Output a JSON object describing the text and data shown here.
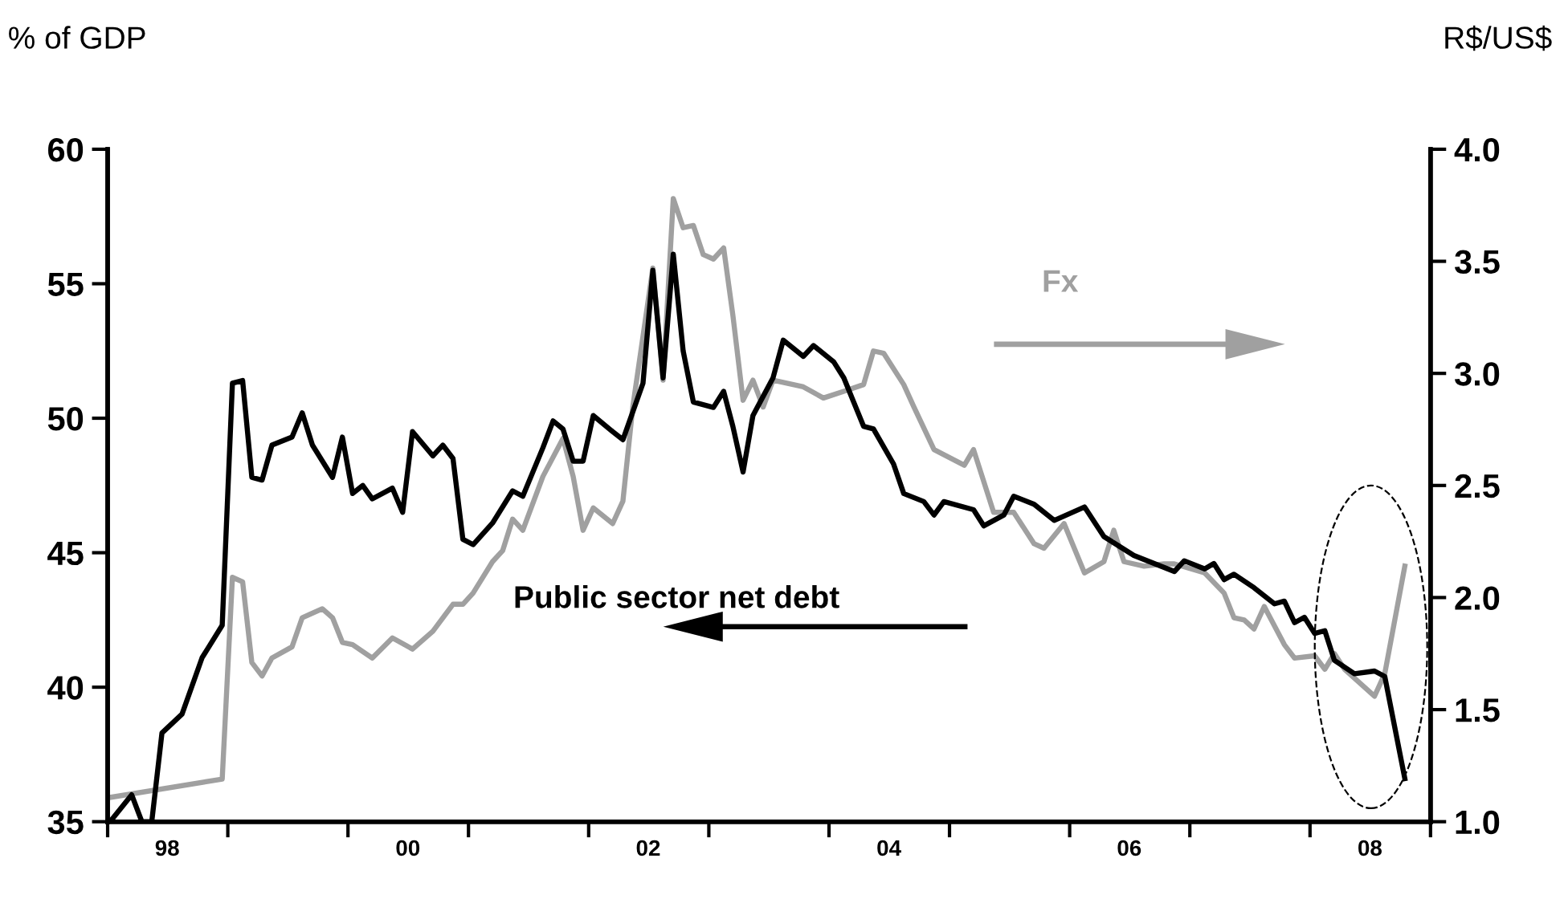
{
  "chart_data": {
    "type": "line",
    "ylabel": "% of GDP",
    "y2label": "R$/US$",
    "xlim": [
      "1998-01-01",
      "2009-01-01"
    ],
    "ylim": [
      35,
      60
    ],
    "yticks": [
      35,
      40,
      45,
      50,
      55,
      60
    ],
    "y2lim": [
      1.0,
      4.0
    ],
    "y2ticks": [
      {
        "value": 1.0,
        "label": "1.0"
      },
      {
        "value": 1.5,
        "label": "1.5"
      },
      {
        "value": 2.0,
        "label": "2.0"
      },
      {
        "value": 2.5,
        "label": "2.5"
      },
      {
        "value": 3.0,
        "label": "3.0"
      },
      {
        "value": 3.5,
        "label": "3.5"
      },
      {
        "value": 4.0,
        "label": "4.0"
      }
    ],
    "xticks": [
      {
        "value": "1998-01-01",
        "label": null
      },
      {
        "value": "1999-01-01",
        "label": null
      },
      {
        "value": "2000-01-01",
        "label": null
      },
      {
        "value": "2001-01-01",
        "label": null
      },
      {
        "value": "2002-01-01",
        "label": null
      },
      {
        "value": "2003-01-01",
        "label": null
      },
      {
        "value": "2004-01-01",
        "label": null
      },
      {
        "value": "2005-01-01",
        "label": null
      },
      {
        "value": "2006-01-01",
        "label": null
      },
      {
        "value": "2007-01-01",
        "label": null
      },
      {
        "value": "2008-01-01",
        "label": null
      },
      {
        "value": "2009-01-01",
        "label": null
      },
      {
        "value": "1998-07-01",
        "label": "98"
      },
      {
        "value": "2000-07-01",
        "label": "00"
      },
      {
        "value": "2002-07-01",
        "label": "02"
      },
      {
        "value": "2004-07-01",
        "label": "04"
      },
      {
        "value": "2006-07-01",
        "label": "06"
      },
      {
        "value": "2008-07-01",
        "label": "08"
      }
    ],
    "grid": false,
    "legend": false,
    "marker": "none",
    "line_style": "solid",
    "series": [
      {
        "name": "Public sector net debt",
        "color": "#000000",
        "x": [
          "1998-01",
          "1998-03",
          "1998-04",
          "1998-05",
          "1998-06",
          "1998-08",
          "1998-10",
          "1998-12",
          "1999-01",
          "1999-02",
          "1999-03",
          "1999-04",
          "1999-05",
          "1999-07",
          "1999-08",
          "1999-09",
          "1999-11",
          "1999-12",
          "2000-01",
          "2000-02",
          "2000-03",
          "2000-05",
          "2000-06",
          "2000-07",
          "2000-09",
          "2000-10",
          "2000-11",
          "2000-12",
          "2001-01",
          "2001-03",
          "2001-05",
          "2001-06",
          "2001-08",
          "2001-09",
          "2001-10",
          "2001-11",
          "2001-12",
          "2002-01",
          "2002-03",
          "2002-04",
          "2002-06",
          "2002-07",
          "2002-08",
          "2002-09",
          "2002-10",
          "2002-11",
          "2003-01",
          "2003-02",
          "2003-03",
          "2003-04",
          "2003-05",
          "2003-07",
          "2003-08",
          "2003-10",
          "2003-11",
          "2004-01",
          "2004-02",
          "2004-04",
          "2004-05",
          "2004-07",
          "2004-08",
          "2004-10",
          "2004-11",
          "2004-12",
          "2005-03",
          "2005-04",
          "2005-06",
          "2005-07",
          "2005-09",
          "2005-11",
          "2006-02",
          "2006-04",
          "2006-07",
          "2006-11",
          "2006-12",
          "2007-02",
          "2007-03",
          "2007-04",
          "2007-05",
          "2007-07",
          "2007-09",
          "2007-10",
          "2007-11",
          "2007-12",
          "2008-01",
          "2008-02",
          "2008-03",
          "2008-05",
          "2008-07",
          "2008-08",
          "2008-10"
        ],
        "values": [
          35.1,
          36.0,
          35.0,
          35.0,
          38.3,
          39.0,
          41.1,
          42.3,
          51.3,
          51.4,
          47.8,
          47.7,
          49.0,
          49.3,
          50.2,
          49.0,
          47.8,
          49.3,
          47.2,
          47.5,
          47.0,
          47.4,
          46.5,
          49.5,
          48.6,
          49.0,
          48.5,
          45.5,
          45.3,
          46.1,
          47.3,
          47.1,
          48.9,
          49.9,
          49.6,
          48.4,
          48.4,
          50.1,
          49.5,
          49.2,
          51.3,
          55.5,
          51.5,
          56.1,
          52.5,
          50.6,
          50.4,
          51.0,
          49.7,
          48.0,
          50.1,
          51.5,
          52.9,
          52.3,
          52.7,
          52.1,
          51.5,
          49.7,
          49.6,
          48.3,
          47.2,
          46.9,
          46.4,
          46.9,
          46.6,
          46.0,
          46.4,
          47.1,
          46.8,
          46.2,
          46.7,
          45.6,
          44.9,
          44.3,
          44.7,
          44.4,
          44.6,
          44.0,
          44.2,
          43.7,
          43.1,
          43.2,
          42.4,
          42.6,
          42.0,
          42.1,
          41.0,
          40.5,
          40.6,
          40.4,
          36.6
        ]
      },
      {
        "name": "Fx",
        "color": "#a0a0a0",
        "axis": "y2",
        "x": [
          "1998-01",
          "1998-12",
          "1999-01",
          "1999-02",
          "1999-03",
          "1999-04",
          "1999-05",
          "1999-07",
          "1999-08",
          "1999-10",
          "1999-11",
          "1999-12",
          "2000-01",
          "2000-03",
          "2000-05",
          "2000-07",
          "2000-09",
          "2000-11",
          "2000-12",
          "2001-01",
          "2001-03",
          "2001-04",
          "2001-05",
          "2001-06",
          "2001-08",
          "2001-10",
          "2001-11",
          "2001-12",
          "2002-01",
          "2002-03",
          "2002-04",
          "2002-05",
          "2002-07",
          "2002-08",
          "2002-09",
          "2002-10",
          "2002-11",
          "2002-12",
          "2003-01",
          "2003-02",
          "2003-03",
          "2003-04",
          "2003-05",
          "2003-06",
          "2003-07",
          "2003-10",
          "2003-12",
          "2004-02",
          "2004-04",
          "2004-05",
          "2004-06",
          "2004-08",
          "2004-09",
          "2004-11",
          "2005-02",
          "2005-03",
          "2005-05",
          "2005-07",
          "2005-09",
          "2005-10",
          "2005-12",
          "2006-02",
          "2006-04",
          "2006-05",
          "2006-06",
          "2006-08",
          "2006-10",
          "2006-11",
          "2007-02",
          "2007-04",
          "2007-05",
          "2007-06",
          "2007-07",
          "2007-08",
          "2007-10",
          "2007-11",
          "2008-01",
          "2008-02",
          "2008-03",
          "2008-04",
          "2008-07",
          "2008-08",
          "2008-10"
        ],
        "values": [
          1.11,
          1.19,
          2.09,
          2.07,
          1.71,
          1.65,
          1.73,
          1.78,
          1.91,
          1.95,
          1.91,
          1.8,
          1.79,
          1.73,
          1.82,
          1.77,
          1.85,
          1.97,
          1.97,
          2.02,
          2.16,
          2.21,
          2.35,
          2.3,
          2.54,
          2.71,
          2.54,
          2.3,
          2.4,
          2.33,
          2.43,
          2.85,
          3.47,
          2.97,
          3.78,
          3.65,
          3.66,
          3.53,
          3.51,
          3.56,
          3.26,
          2.88,
          2.97,
          2.85,
          2.97,
          2.94,
          2.89,
          2.92,
          2.95,
          3.1,
          3.09,
          2.95,
          2.85,
          2.66,
          2.59,
          2.66,
          2.38,
          2.38,
          2.24,
          2.22,
          2.33,
          2.11,
          2.16,
          2.3,
          2.16,
          2.14,
          2.15,
          2.15,
          2.11,
          2.02,
          1.91,
          1.9,
          1.86,
          1.96,
          1.79,
          1.73,
          1.74,
          1.68,
          1.75,
          1.68,
          1.56,
          1.66,
          2.14
        ]
      }
    ]
  }
}
